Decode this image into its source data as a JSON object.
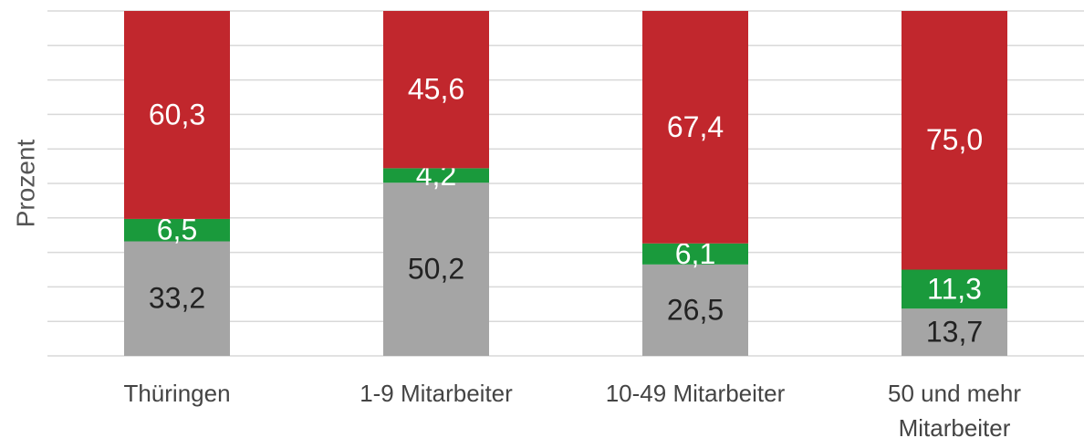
{
  "chart_data": {
    "type": "stacked_bar",
    "y_label": "Prozent",
    "categories": [
      "Thüringen",
      "1-9 Mitarbeiter",
      "10-49 Mitarbeiter",
      "50 und mehr Mitarbeiter"
    ],
    "series": [
      {
        "color": "#a5a5a5",
        "label_color": "#222222",
        "values": [
          33.2,
          50.2,
          26.5,
          13.7
        ],
        "value_labels": [
          "33,2",
          "50,2",
          "26,5",
          "13,7"
        ]
      },
      {
        "color": "#1a9a3c",
        "label_color": "#ffffff",
        "values": [
          6.5,
          4.2,
          6.1,
          11.3
        ],
        "value_labels": [
          "6,5",
          "4,2",
          "6,1",
          "11,3"
        ]
      },
      {
        "color": "#c1272d",
        "label_color": "#ffffff",
        "values": [
          60.3,
          45.6,
          67.4,
          75.0
        ],
        "value_labels": [
          "60,3",
          "45,6",
          "67,4",
          "75,0"
        ]
      }
    ],
    "ylim": [
      0,
      100
    ],
    "yticks": [
      0,
      10,
      20,
      30,
      40,
      50,
      60,
      70,
      80,
      90,
      100
    ],
    "grid": true
  }
}
